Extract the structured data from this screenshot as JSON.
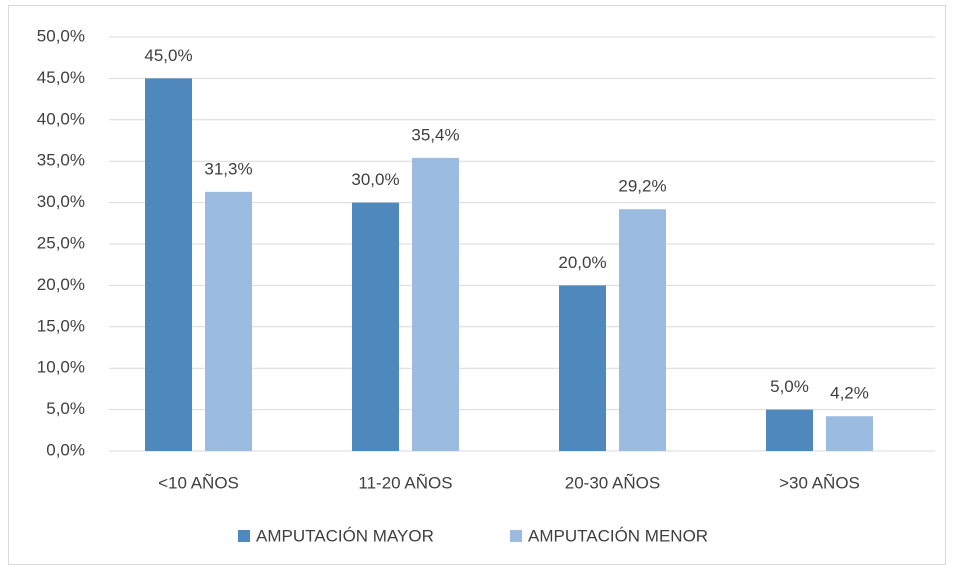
{
  "chart_data": {
    "type": "bar",
    "categories": [
      "<10 AÑOS",
      "11-20 AÑOS",
      "20-30 AÑOS",
      ">30 AÑOS"
    ],
    "series": [
      {
        "name": "AMPUTACIÓN MAYOR",
        "color": "#4f88bd",
        "values": [
          45.0,
          30.0,
          20.0,
          5.0
        ],
        "value_labels": [
          "45,0%",
          "30,0%",
          "20,0%",
          "5,0%"
        ]
      },
      {
        "name": "AMPUTACIÓN MENOR",
        "color": "#9bbbe0",
        "values": [
          31.3,
          35.4,
          29.2,
          4.2
        ],
        "value_labels": [
          "31,3%",
          "35,4%",
          "29,2%",
          "4,2%"
        ]
      }
    ],
    "ylim": [
      0,
      50
    ],
    "yticks": [
      {
        "value": 0,
        "label": "0,0%"
      },
      {
        "value": 5,
        "label": "5,0%"
      },
      {
        "value": 10,
        "label": "10,0%"
      },
      {
        "value": 15,
        "label": "15,0%"
      },
      {
        "value": 20,
        "label": "20,0%"
      },
      {
        "value": 25,
        "label": "25,0%"
      },
      {
        "value": 30,
        "label": "30,0%"
      },
      {
        "value": 35,
        "label": "35,0%"
      },
      {
        "value": 40,
        "label": "40,0%"
      },
      {
        "value": 45,
        "label": "45,0%"
      },
      {
        "value": 50,
        "label": "50,0%"
      }
    ],
    "grid": true,
    "legend": "bottom"
  }
}
